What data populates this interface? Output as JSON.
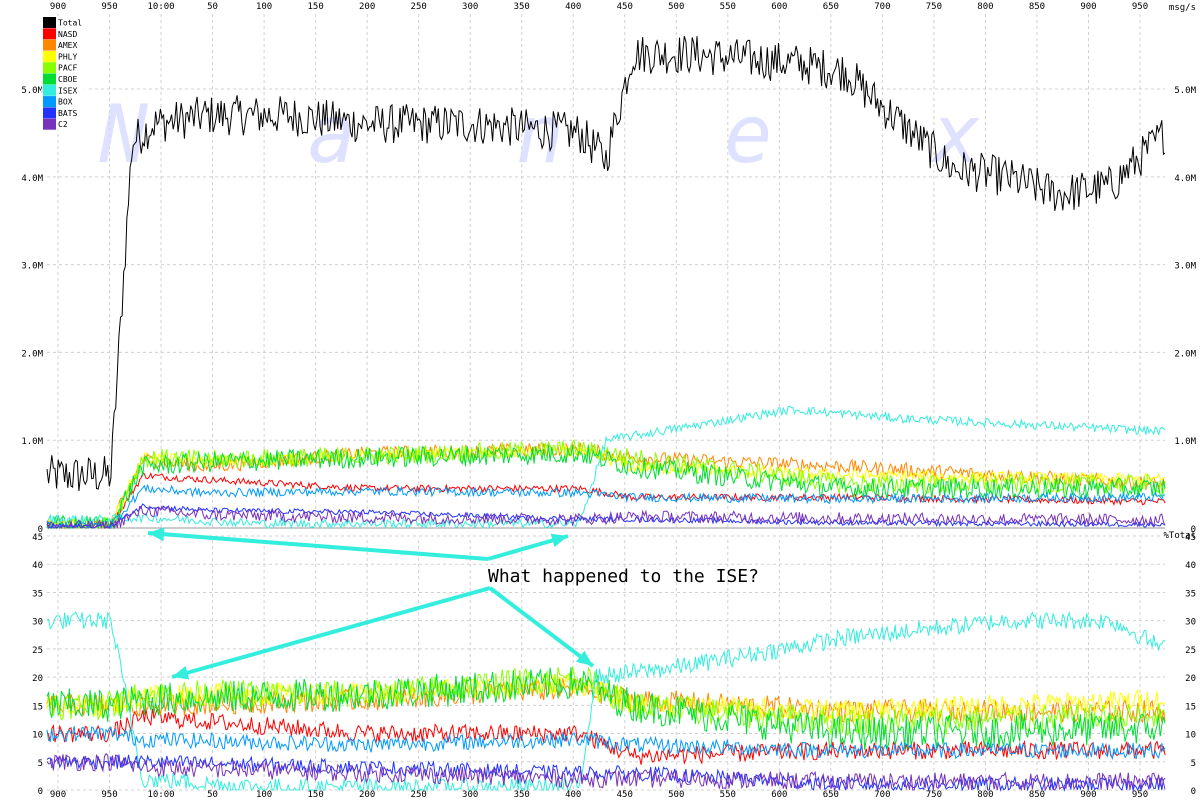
{
  "chart_data": [
    {
      "type": "line",
      "panel": "top",
      "unit_label": "msg/s",
      "x_ticks": [
        "900",
        "950",
        "10:00",
        "50",
        "100",
        "150",
        "200",
        "250",
        "300",
        "350",
        "400",
        "450",
        "500",
        "550",
        "600",
        "650",
        "700",
        "750",
        "800",
        "850",
        "900",
        "950"
      ],
      "x_domain": [
        0,
        2100
      ],
      "ylim": [
        0,
        5900000
      ],
      "y_ticks": [
        {
          "value": 0,
          "label": "0"
        },
        {
          "value": 1000000,
          "label": "1.0M"
        },
        {
          "value": 2000000,
          "label": "2.0M"
        },
        {
          "value": 3000000,
          "label": "3.0M"
        },
        {
          "value": 4000000,
          "label": "4.0M"
        },
        {
          "value": 5000000,
          "label": "5.0M"
        }
      ],
      "grid": true,
      "legend_placement": "top-left",
      "watermark": "Nanex",
      "series": [
        {
          "name": "Total",
          "color": "#000000",
          "noise": 230000,
          "x": [
            0,
            120,
            160,
            200,
            300,
            450,
            600,
            800,
            1000,
            1050,
            1100,
            1200,
            1400,
            1500,
            1550,
            1700,
            1800,
            1900,
            2000,
            2100
          ],
          "y": [
            600000,
            600000,
            4400000,
            4600000,
            4700000,
            4700000,
            4600000,
            4600000,
            4500000,
            4200000,
            5400000,
            5400000,
            5300000,
            5200000,
            4900000,
            4100000,
            4000000,
            3800000,
            3900000,
            4500000
          ]
        },
        {
          "name": "NASD",
          "color": "#ff0000",
          "noise": 40000,
          "x": [
            0,
            120,
            180,
            300,
            600,
            1000,
            1100,
            1500,
            2100
          ],
          "y": [
            30000,
            30000,
            600000,
            550000,
            450000,
            450000,
            350000,
            350000,
            300000
          ]
        },
        {
          "name": "AMEX",
          "color": "#ff8800",
          "noise": 80000,
          "x": [
            0,
            120,
            180,
            300,
            600,
            1000,
            1100,
            1500,
            2100
          ],
          "y": [
            30000,
            30000,
            780000,
            700000,
            850000,
            900000,
            800000,
            700000,
            500000
          ]
        },
        {
          "name": "PHLY",
          "color": "#ffff00",
          "noise": 70000,
          "x": [
            0,
            120,
            180,
            300,
            600,
            1000,
            1100,
            1500,
            2100
          ],
          "y": [
            30000,
            30000,
            800000,
            760000,
            820000,
            880000,
            700000,
            600000,
            550000
          ]
        },
        {
          "name": "PACF",
          "color": "#88ff00",
          "noise": 110000,
          "x": [
            0,
            120,
            180,
            300,
            600,
            1000,
            1100,
            1500,
            2100
          ],
          "y": [
            30000,
            30000,
            800000,
            780000,
            820000,
            900000,
            800000,
            500000,
            500000
          ]
        },
        {
          "name": "CBOE",
          "color": "#00dd33",
          "noise": 120000,
          "x": [
            0,
            120,
            180,
            300,
            600,
            1000,
            1100,
            1500,
            2100
          ],
          "y": [
            30000,
            30000,
            700000,
            750000,
            800000,
            850000,
            700000,
            450000,
            450000
          ]
        },
        {
          "name": "ISEX",
          "color": "#33eedd",
          "noise": 50000,
          "x": [
            0,
            120,
            180,
            400,
            1000,
            1050,
            1200,
            1400,
            1600,
            2100
          ],
          "y": [
            100000,
            100000,
            120000,
            50000,
            50000,
            1000000,
            1150000,
            1350000,
            1250000,
            1100000
          ]
        },
        {
          "name": "BOX",
          "color": "#0099ff",
          "noise": 50000,
          "x": [
            0,
            120,
            180,
            300,
            600,
            1000,
            1100,
            1500,
            2100
          ],
          "y": [
            30000,
            30000,
            450000,
            400000,
            420000,
            400000,
            350000,
            330000,
            350000
          ]
        },
        {
          "name": "BATS",
          "color": "#2233ff",
          "noise": 30000,
          "x": [
            0,
            120,
            180,
            300,
            600,
            1000,
            1100,
            1500,
            2100
          ],
          "y": [
            20000,
            20000,
            250000,
            200000,
            180000,
            100000,
            100000,
            60000,
            40000
          ]
        },
        {
          "name": "C2",
          "color": "#7733bb",
          "noise": 70000,
          "x": [
            0,
            120,
            180,
            300,
            600,
            1000,
            1100,
            1500,
            2100
          ],
          "y": [
            20000,
            20000,
            200000,
            150000,
            120000,
            100000,
            130000,
            110000,
            90000
          ]
        }
      ]
    },
    {
      "type": "line",
      "panel": "bottom",
      "unit_label": "%Total",
      "x_ticks": [
        "900",
        "950",
        "10:00",
        "50",
        "100",
        "150",
        "200",
        "250",
        "300",
        "350",
        "400",
        "450",
        "500",
        "550",
        "600",
        "650",
        "700",
        "750",
        "800",
        "850",
        "900",
        "950"
      ],
      "x_domain": [
        0,
        2100
      ],
      "ylim": [
        0,
        45
      ],
      "y_ticks": [
        {
          "value": 0,
          "label": "0"
        },
        {
          "value": 5,
          "label": "5"
        },
        {
          "value": 10,
          "label": "10"
        },
        {
          "value": 15,
          "label": "15"
        },
        {
          "value": 20,
          "label": "20"
        },
        {
          "value": 25,
          "label": "25"
        },
        {
          "value": 30,
          "label": "30"
        },
        {
          "value": 35,
          "label": "35"
        },
        {
          "value": 40,
          "label": "40"
        },
        {
          "value": 45,
          "label": "45"
        }
      ],
      "grid": true,
      "series": [
        {
          "name": "NASD",
          "color": "#ff0000",
          "noise": 1.6,
          "x": [
            0,
            120,
            180,
            600,
            1000,
            1100,
            1500,
            2100
          ],
          "y": [
            10,
            10,
            13,
            10,
            10,
            6,
            7,
            7
          ]
        },
        {
          "name": "AMEX",
          "color": "#ff8800",
          "noise": 2,
          "x": [
            0,
            120,
            180,
            600,
            1000,
            1100,
            1500,
            2100
          ],
          "y": [
            15,
            15,
            15,
            16,
            18,
            16,
            14,
            14
          ]
        },
        {
          "name": "PHLY",
          "color": "#ffff00",
          "noise": 2,
          "x": [
            0,
            120,
            180,
            600,
            1000,
            1100,
            1500,
            2100
          ],
          "y": [
            15,
            15,
            17,
            17,
            19,
            15,
            14,
            16
          ]
        },
        {
          "name": "PACF",
          "color": "#88ff00",
          "noise": 2.5,
          "x": [
            0,
            120,
            180,
            600,
            1000,
            1100,
            1500,
            2100
          ],
          "y": [
            15,
            15,
            17,
            17,
            20,
            15,
            12,
            13
          ]
        },
        {
          "name": "CBOE",
          "color": "#00dd33",
          "noise": 3,
          "x": [
            0,
            120,
            180,
            600,
            1000,
            1100,
            1500,
            2100
          ],
          "y": [
            15,
            15,
            16,
            17,
            19,
            15,
            10,
            11
          ]
        },
        {
          "name": "ISEX",
          "color": "#33eedd",
          "noise": 1.6,
          "x": [
            0,
            120,
            180,
            400,
            1000,
            1030,
            1200,
            1500,
            1800,
            2000,
            2100
          ],
          "y": [
            30,
            30,
            2,
            0.5,
            0.5,
            20,
            22,
            27,
            30,
            30,
            25
          ]
        },
        {
          "name": "BOX",
          "color": "#0099ff",
          "noise": 1.4,
          "x": [
            0,
            120,
            180,
            600,
            1000,
            1100,
            1500,
            2100
          ],
          "y": [
            10,
            10,
            9,
            8,
            9,
            8,
            7,
            7
          ]
        },
        {
          "name": "BATS",
          "color": "#2233ff",
          "noise": 1.3,
          "x": [
            0,
            120,
            180,
            600,
            1000,
            1100,
            1500,
            2100
          ],
          "y": [
            5,
            5,
            5,
            4,
            3,
            3,
            1,
            1
          ]
        },
        {
          "name": "C2",
          "color": "#7733bb",
          "noise": 1.6,
          "x": [
            0,
            120,
            180,
            600,
            1000,
            1100,
            1500,
            2100
          ],
          "y": [
            5,
            5,
            4,
            3,
            2,
            2,
            1.5,
            1.5
          ]
        }
      ],
      "annotation": {
        "text": "What happened to the ISE?",
        "color": "#33eedd"
      }
    }
  ]
}
